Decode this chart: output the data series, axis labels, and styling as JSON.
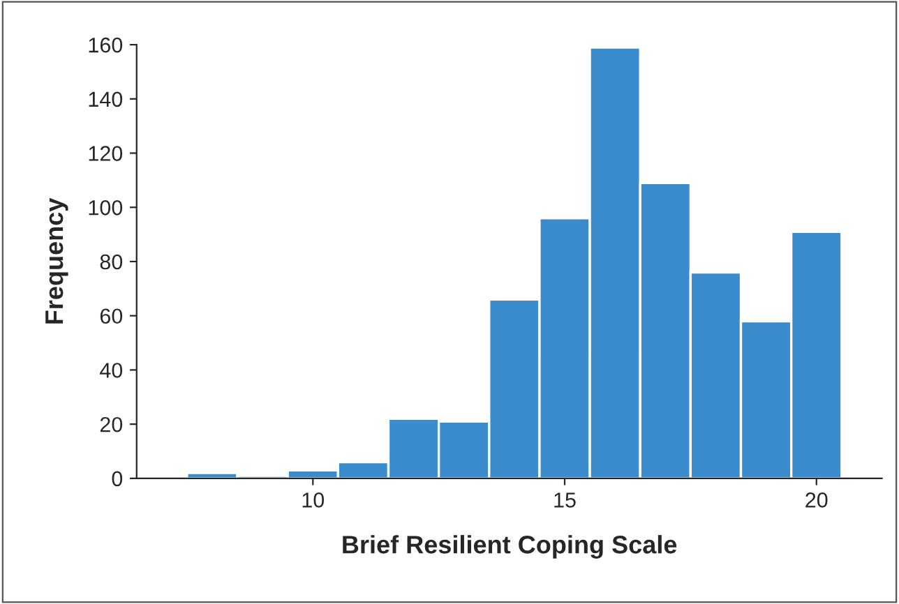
{
  "chart_data": {
    "type": "histogram",
    "xlabel": "Brief Resilient Coping Scale",
    "ylabel": "Frequency",
    "bins": [
      7.5,
      8.5,
      9.5,
      10.5,
      11.5,
      12.5,
      13.5,
      14.5,
      15.5,
      16.5,
      17.5,
      18.5,
      19.5,
      20.5
    ],
    "values": [
      2,
      1,
      3,
      6,
      22,
      21,
      66,
      96,
      159,
      109,
      76,
      58,
      91
    ],
    "color": "#3a8ccc",
    "xlim": [
      6.5,
      21.3
    ],
    "xticks": [
      10,
      15,
      20
    ],
    "ylim": [
      0,
      160
    ],
    "yticks": [
      0,
      20,
      40,
      60,
      80,
      100,
      120,
      140,
      160
    ],
    "grid": false
  }
}
